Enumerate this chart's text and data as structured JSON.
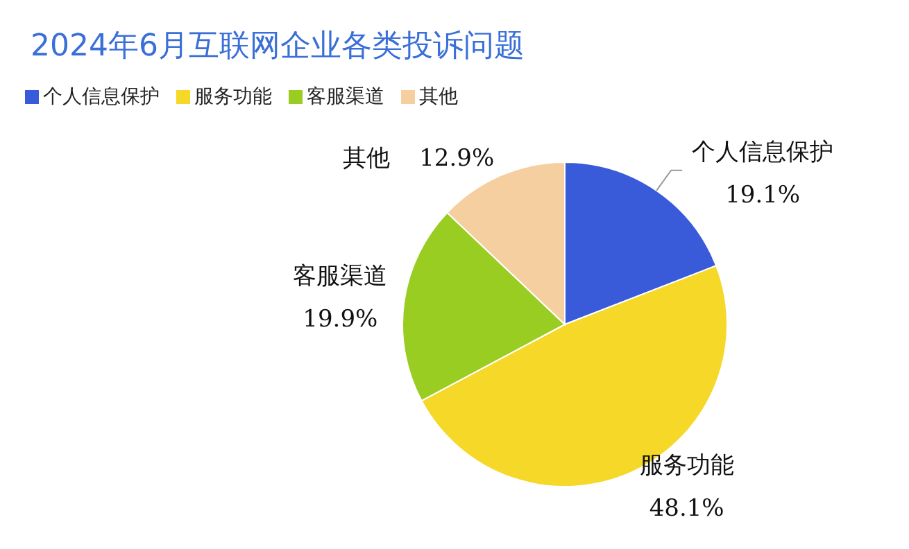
{
  "chart_data": {
    "type": "pie",
    "title": "2024年6月互联网企业各类投诉问题",
    "categories": [
      "个人信息保护",
      "服务功能",
      "客服渠道",
      "其他"
    ],
    "values": [
      19.1,
      48.1,
      19.9,
      12.9
    ],
    "value_labels": [
      "19.1%",
      "48.1%",
      "19.9%",
      "12.9%"
    ],
    "colors": [
      "#3a5bd9",
      "#f5d828",
      "#9acd22",
      "#f5cfa0"
    ],
    "legend": "top left"
  }
}
